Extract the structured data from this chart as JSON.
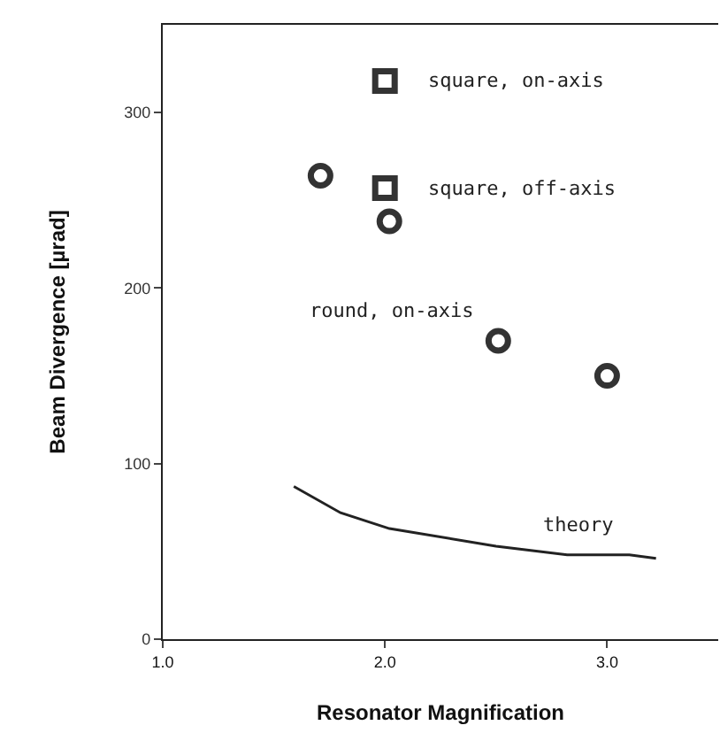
{
  "chart_data": {
    "type": "scatter",
    "xlabel": "Resonator Magnification",
    "ylabel": "Beam Divergence [µrad]",
    "xlim": [
      1.0,
      3.5
    ],
    "ylim": [
      0,
      350
    ],
    "xticks": [
      {
        "value": 1,
        "label": "1.0"
      },
      {
        "value": 2,
        "label": "2.0"
      },
      {
        "value": 3,
        "label": "3.0"
      }
    ],
    "yticks": [
      0,
      100,
      200,
      300
    ],
    "series": [
      {
        "name": "square, on-axis",
        "marker": "square",
        "color": "#333333",
        "x": [
          2.0
        ],
        "values": [
          318
        ]
      },
      {
        "name": "square, off-axis",
        "marker": "square",
        "color": "#333333",
        "x": [
          2.0
        ],
        "values": [
          257
        ]
      },
      {
        "name": "round, on-axis",
        "marker": "circle",
        "color": "#333333",
        "x": [
          1.71,
          2.02,
          2.51,
          3.0
        ],
        "values": [
          264,
          238,
          170,
          150
        ]
      },
      {
        "name": "theory",
        "type": "line",
        "marker": "none",
        "color": "#222222",
        "x": [
          1.59,
          1.8,
          2.02,
          2.5,
          2.82,
          3.1,
          3.22
        ],
        "values": [
          87,
          72,
          63,
          53,
          48,
          48,
          46
        ]
      }
    ],
    "legend": false
  }
}
